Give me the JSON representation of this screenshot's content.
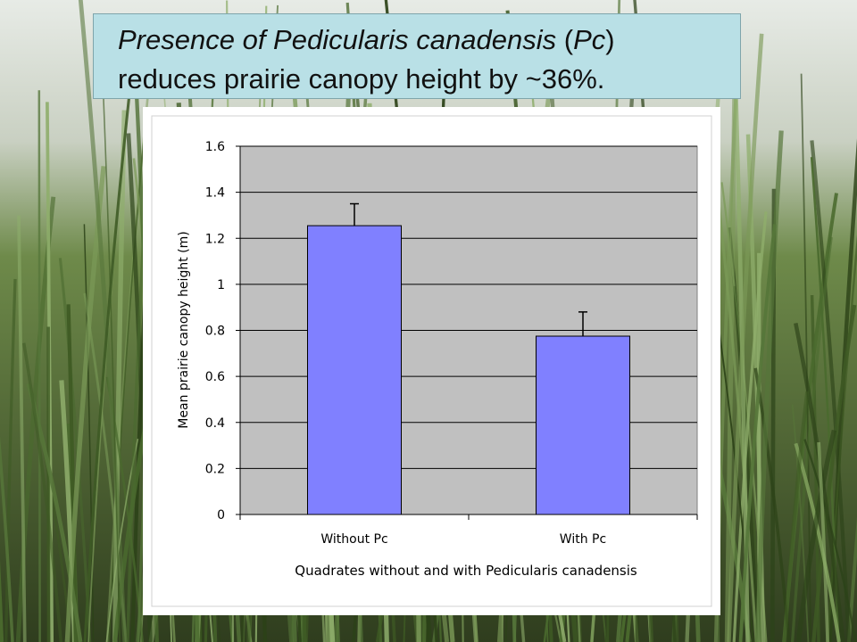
{
  "slide_title": {
    "line1": [
      {
        "text": "Presence of Pedicularis canadensis",
        "italic": true
      },
      {
        "text": " (",
        "italic": false
      },
      {
        "text": "Pc",
        "italic": true
      },
      {
        "text": ")",
        "italic": false
      }
    ],
    "line2": "reduces prairie canopy height by ~36%."
  },
  "colors": {
    "bar": "#8080ff",
    "plot_area": "#c0c0c0",
    "frame_bg": "#ffffff",
    "title_bg": "#b9e0e6",
    "foliage_dark": "#2f3d1e",
    "foliage_light": "#6e8a4a",
    "sky": "#e7ebe6"
  },
  "chart_data": {
    "type": "bar",
    "categories": [
      "Without Pc",
      "With Pc"
    ],
    "values": [
      1.255,
      0.775
    ],
    "error_upper": [
      1.35,
      0.88
    ],
    "xlabel": "Quadrates without and with Pedicularis canadensis",
    "ylabel": "Mean prairie canopy height (m)",
    "ylim": [
      0,
      1.6
    ],
    "yticks": [
      0,
      0.2,
      0.4,
      0.6,
      0.8,
      1,
      1.2,
      1.4,
      1.6
    ],
    "ytick_labels": [
      "0",
      "0.2",
      "0.4",
      "0.6",
      "0.8",
      "1",
      "1.2",
      "1.4",
      "1.6"
    ],
    "grid": true,
    "legend": false
  }
}
